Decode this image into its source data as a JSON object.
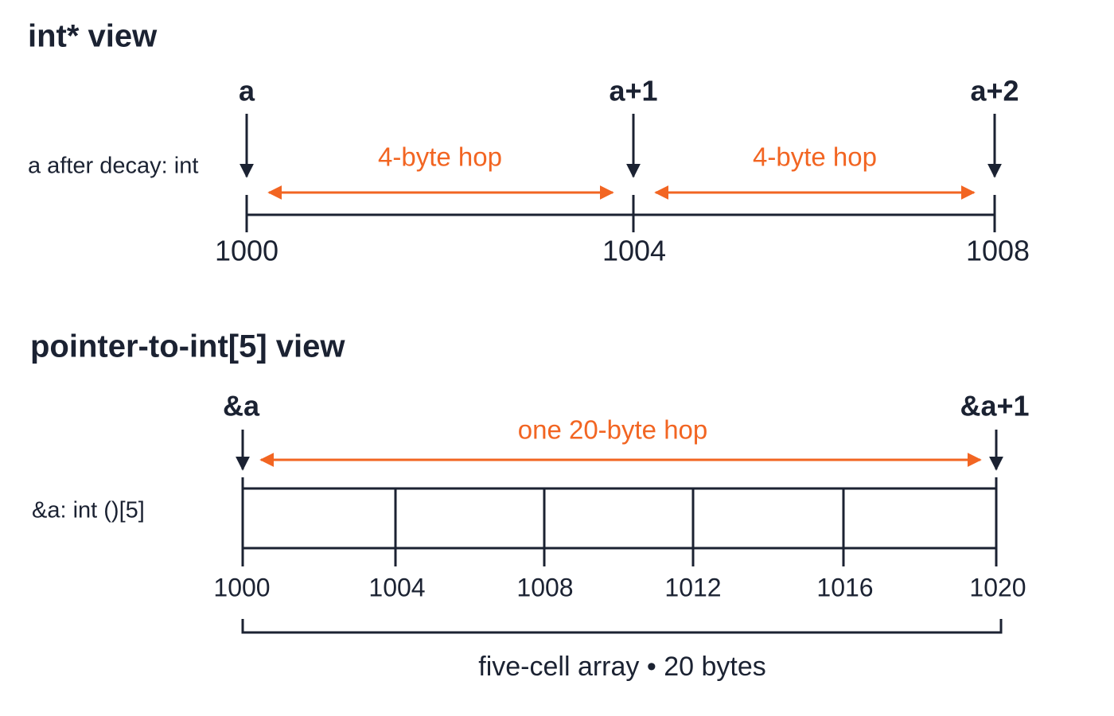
{
  "int_view": {
    "title": "int* view",
    "type_label": "a after decay: int",
    "pointers": [
      "a",
      "a+1",
      "a+2"
    ],
    "hops": [
      "4-byte hop",
      "4-byte hop"
    ],
    "addresses": [
      1000,
      1004,
      1008
    ]
  },
  "array_view": {
    "title": "pointer-to-int[5] view",
    "type_label": "&a: int ()[5]",
    "pointers": [
      "&a",
      "&a+1"
    ],
    "hop": "one 20-byte hop",
    "addresses": [
      1000,
      1004,
      1008,
      1012,
      1016,
      1020
    ],
    "caption": "five-cell array • 20 bytes"
  }
}
